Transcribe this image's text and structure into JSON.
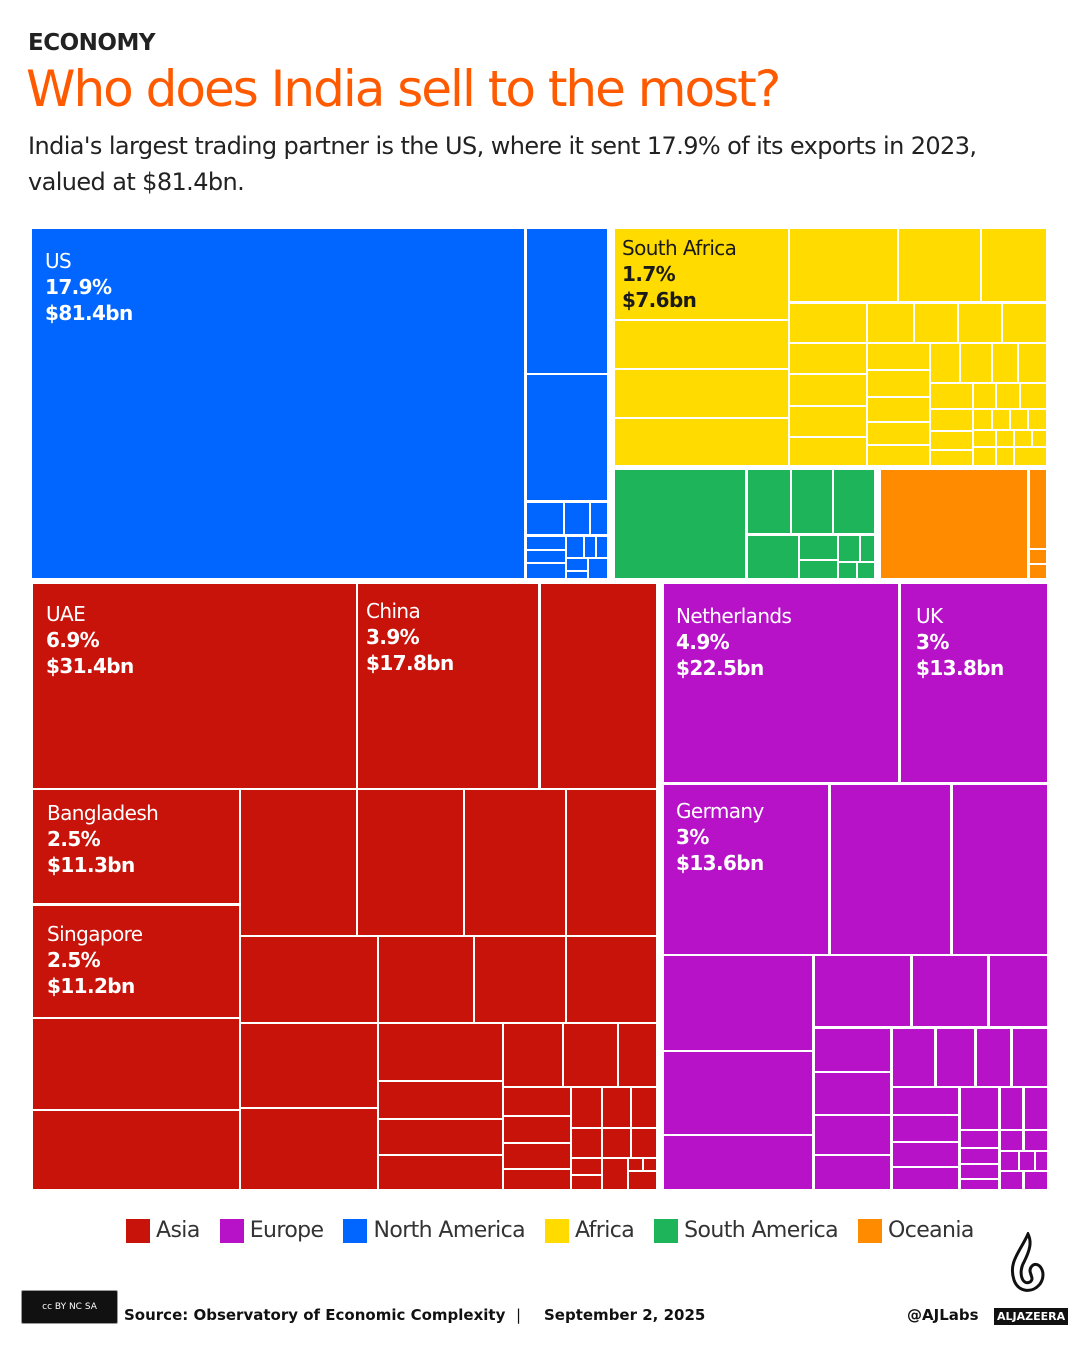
{
  "header": {
    "kicker": "ECONOMY",
    "title": "Who does India sell to the most?",
    "subtitle": "India's largest trading partner is the US, where it sent 17.9% of its exports in 2023, valued at $81.4bn."
  },
  "colors": {
    "Asia": "#c8130b",
    "Europe": "#b812c9",
    "North America": "#0066ff",
    "Africa": "#ffdb00",
    "South America": "#1db45a",
    "Oceania": "#ff8c00",
    "title": "#ff5a00"
  },
  "chart_data": {
    "type": "treemap",
    "labeled": [
      {
        "name": "US",
        "share": "17.9%",
        "value": "$81.4bn",
        "region": "North America"
      },
      {
        "name": "South Africa",
        "share": "1.7%",
        "value": "$7.6bn",
        "region": "Africa"
      },
      {
        "name": "UAE",
        "share": "6.9%",
        "value": "$31.4bn",
        "region": "Asia"
      },
      {
        "name": "China",
        "share": "3.9%",
        "value": "$17.8bn",
        "region": "Asia"
      },
      {
        "name": "Netherlands",
        "share": "4.9%",
        "value": "$22.5bn",
        "region": "Europe"
      },
      {
        "name": "UK",
        "share": "3%",
        "value": "$13.8bn",
        "region": "Europe"
      },
      {
        "name": "Bangladesh",
        "share": "2.5%",
        "value": "$11.3bn",
        "region": "Asia"
      },
      {
        "name": "Germany",
        "share": "3%",
        "value": "$13.6bn",
        "region": "Europe"
      },
      {
        "name": "Singapore",
        "share": "2.5%",
        "value": "$11.2bn",
        "region": "Asia"
      }
    ]
  },
  "legend": [
    {
      "label": "Asia"
    },
    {
      "label": "Europe"
    },
    {
      "label": "North America"
    },
    {
      "label": "Africa"
    },
    {
      "label": "South America"
    },
    {
      "label": "Oceania"
    }
  ],
  "footer": {
    "license": "cc BY NC SA",
    "source": "Source: Observatory of Economic Complexity",
    "separator": "|",
    "date": "September 2, 2025",
    "handle": "@AJLabs",
    "brand": "ALJAZEERA"
  }
}
